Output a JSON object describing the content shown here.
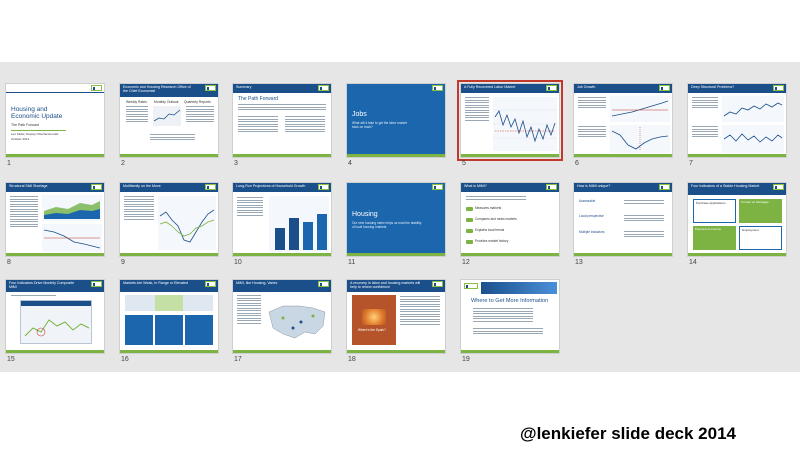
{
  "caption": "@lenkiefer slide deck 2014",
  "selected_slide": 5,
  "colors": {
    "navy": "#1b4f8a",
    "green": "#7cb342",
    "selection": "#c0392b",
    "background": "#e6e6e6"
  },
  "slides": [
    {
      "number": "1",
      "title": "Housing and Economic Update",
      "subtitle": "The Path Forward",
      "author": "Len Kiefer, Deputy Chief Economist",
      "date": "October 2014"
    },
    {
      "number": "2",
      "title": "Economic and Housing Research Office of the Chief Economist",
      "labels": [
        "Weekly Rates",
        "Monthly Outlook",
        "Quarterly Reports"
      ]
    },
    {
      "number": "3",
      "title": "Summary",
      "heading": "The Path Forward"
    },
    {
      "number": "4",
      "title": "Jobs",
      "body": "What will it take to get the labor market back on track?"
    },
    {
      "number": "5",
      "title": "A Fully Recovered Labor Market"
    },
    {
      "number": "6",
      "title": "Job Growth"
    },
    {
      "number": "7",
      "title": "Deep Structural Problems?"
    },
    {
      "number": "8",
      "title": "Structural Skill Shortage"
    },
    {
      "number": "9",
      "title": "Multifamily on the Move"
    },
    {
      "number": "10",
      "title": "Long-Run Projections of Household Growth"
    },
    {
      "number": "11",
      "title": "Housing",
      "body": "Our new housing index helps us read the stability of local housing markets"
    },
    {
      "number": "12",
      "title": "What is MiMI?",
      "bullets": [
        "Measures markets",
        "Compares and ranks markets",
        "Explains local trends",
        "Provides market history"
      ]
    },
    {
      "number": "13",
      "title": "How is MiMI unique?",
      "labels": [
        "Assessable",
        "Local perspective",
        "Multiple indicators"
      ]
    },
    {
      "number": "14",
      "title": "Four Indicators of a Stable Housing Market",
      "labels": [
        "Purchase Applications",
        "Current on Mortgage",
        "Payment-to-Income",
        "Employment"
      ]
    },
    {
      "number": "15",
      "title": "Four Indicators Drive Monthly Composite MiMI"
    },
    {
      "number": "16",
      "title": "Markets Are Weak, In Range or Elevated"
    },
    {
      "number": "17",
      "title": "MiMI, like Housing, Varies"
    },
    {
      "number": "18",
      "title": "A recovery in labor and housing markets will help to renew confidence",
      "label": "Where's the Spark?"
    },
    {
      "number": "19",
      "title": "Where to Get More Information"
    }
  ]
}
